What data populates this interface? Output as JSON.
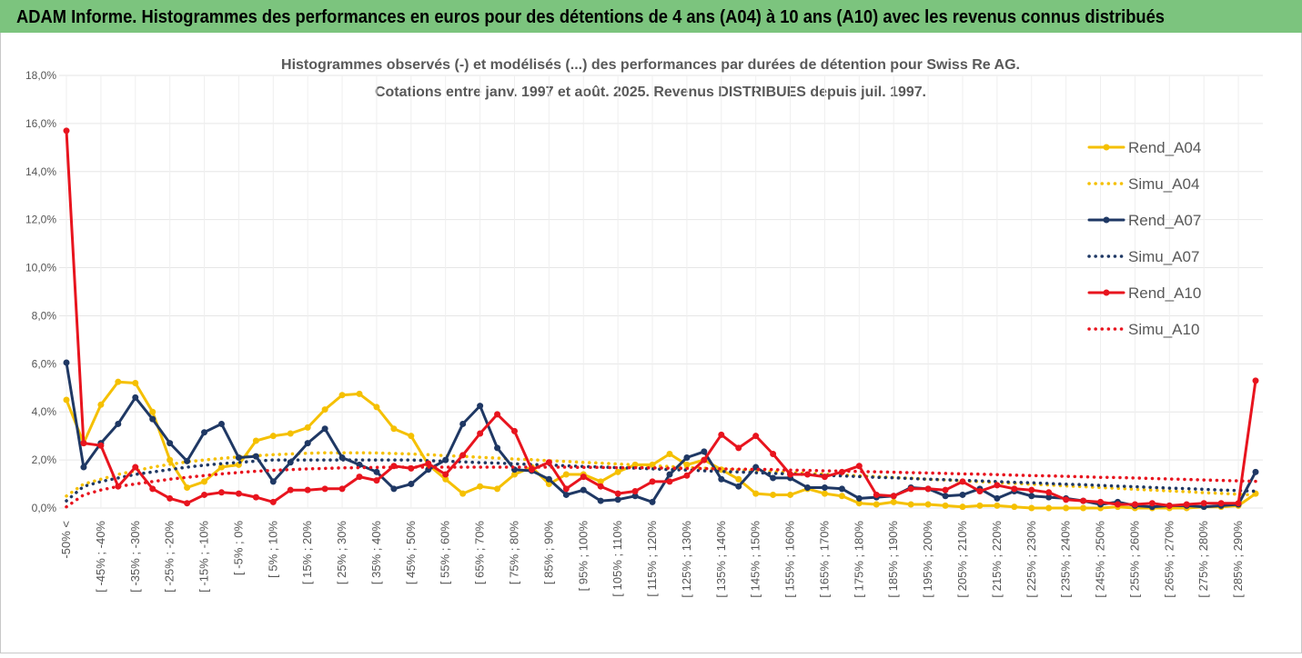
{
  "header": {
    "title": "ADAM Informe. Histogrammes des performances en euros pour des détentions de 4 ans (A04) à 10 ans (A10) avec les revenus connus distribués"
  },
  "chart_data": {
    "type": "line",
    "title": "Histogrammes observés (-) et modélisés (...) des performances par durées de détention pour Swiss Re AG.",
    "subtitle": "Cotations entre janv. 1997 et août. 2025. Revenus DISTRIBUES depuis juil. 1997.",
    "categories": [
      "-50% <",
      null,
      "[ -45% ; -40%",
      null,
      "[ -35% ; -30%",
      null,
      "[ -25% ; -20%",
      null,
      "[ -15% ; -10%",
      null,
      "[ -5% ; 0%",
      null,
      "[ 5% ; 10%",
      null,
      "[ 15% ; 20%",
      null,
      "[ 25% ; 30%",
      null,
      "[ 35% ; 40%",
      null,
      "[ 45% ; 50%",
      null,
      "[ 55% ; 60%",
      null,
      "[ 65% ; 70%",
      null,
      "[ 75% ; 80%",
      null,
      "[ 85% ; 90%",
      null,
      "[ 95% ; 100%",
      null,
      "[ 105% ; 110%",
      null,
      "[ 115% ; 120%",
      null,
      "[ 125% ; 130%",
      null,
      "[ 135% ; 140%",
      null,
      "[ 145% ; 150%",
      null,
      "[ 155% ; 160%",
      null,
      "[ 165% ; 170%",
      null,
      "[ 175% ; 180%",
      null,
      "[ 185% ; 190%",
      null,
      "[ 195% ; 200%",
      null,
      "[ 205% ; 210%",
      null,
      "[ 215% ; 220%",
      null,
      "[ 225% ; 230%",
      null,
      "[ 235% ; 240%",
      null,
      "[ 245% ; 250%",
      null,
      "[ 255% ; 260%",
      null,
      "[ 265% ; 270%",
      null,
      "[ 275% ; 280%",
      null,
      "[ 285% ; 290%",
      null
    ],
    "series": [
      {
        "name": "Rend_A04",
        "color": "#f5c000",
        "line_style": "solid",
        "markers": true,
        "values": [
          4.5,
          2.7,
          4.3,
          5.25,
          5.2,
          4.0,
          2.0,
          0.85,
          1.1,
          1.7,
          1.8,
          2.8,
          3.0,
          3.1,
          3.35,
          4.1,
          4.7,
          4.75,
          4.2,
          3.3,
          3.0,
          1.8,
          1.2,
          0.6,
          0.9,
          0.8,
          1.4,
          1.7,
          1.0,
          1.4,
          1.4,
          1.1,
          1.5,
          1.8,
          1.8,
          2.25,
          1.8,
          2.0,
          1.6,
          1.2,
          0.6,
          0.55,
          0.55,
          0.8,
          0.6,
          0.5,
          0.2,
          0.15,
          0.25,
          0.15,
          0.15,
          0.1,
          0.05,
          0.1,
          0.1,
          0.05,
          0,
          0,
          0,
          0,
          0,
          0.05,
          0,
          0,
          0,
          0,
          0.05,
          0.05,
          0.1,
          0.6
        ]
      },
      {
        "name": "Simu_A04",
        "color": "#f5c000",
        "line_style": "dotted",
        "markers": false,
        "values": [
          0.5,
          1.0,
          1.2,
          1.4,
          1.55,
          1.7,
          1.82,
          1.92,
          2.0,
          2.07,
          2.13,
          2.18,
          2.22,
          2.25,
          2.28,
          2.3,
          2.3,
          2.3,
          2.29,
          2.27,
          2.25,
          2.22,
          2.18,
          2.15,
          2.11,
          2.08,
          2.04,
          2.01,
          1.97,
          1.94,
          1.9,
          1.87,
          1.83,
          1.8,
          1.76,
          1.73,
          1.69,
          1.66,
          1.62,
          1.59,
          1.55,
          1.52,
          1.48,
          1.45,
          1.41,
          1.38,
          1.34,
          1.31,
          1.27,
          1.24,
          1.2,
          1.17,
          1.13,
          1.1,
          1.06,
          1.03,
          0.99,
          0.96,
          0.92,
          0.89,
          0.85,
          0.82,
          0.78,
          0.75,
          0.71,
          0.68,
          0.64,
          0.61,
          0.57,
          0.54
        ]
      },
      {
        "name": "Rend_A07",
        "color": "#1f3864",
        "line_style": "solid",
        "markers": true,
        "values": [
          6.05,
          1.7,
          2.7,
          3.5,
          4.6,
          3.7,
          2.7,
          1.95,
          3.15,
          3.5,
          2.1,
          2.15,
          1.1,
          1.9,
          2.7,
          3.3,
          2.1,
          1.8,
          1.5,
          0.8,
          1.0,
          1.6,
          2.0,
          3.5,
          4.25,
          2.5,
          1.6,
          1.55,
          1.2,
          0.55,
          0.75,
          0.3,
          0.35,
          0.5,
          0.25,
          1.4,
          2.1,
          2.35,
          1.2,
          0.9,
          1.7,
          1.25,
          1.25,
          0.85,
          0.85,
          0.8,
          0.4,
          0.45,
          0.5,
          0.85,
          0.8,
          0.5,
          0.55,
          0.8,
          0.4,
          0.7,
          0.5,
          0.45,
          0.4,
          0.3,
          0.15,
          0.25,
          0.1,
          0.05,
          0.1,
          0.1,
          0.05,
          0.1,
          0.15,
          1.5
        ]
      },
      {
        "name": "Simu_A07",
        "color": "#1f3864",
        "line_style": "dotted",
        "markers": false,
        "values": [
          0.3,
          0.9,
          1.1,
          1.25,
          1.4,
          1.5,
          1.6,
          1.7,
          1.78,
          1.85,
          1.9,
          1.95,
          2.0,
          2.0,
          2.0,
          2.0,
          2.0,
          2.0,
          2.0,
          2.0,
          2.0,
          1.97,
          1.95,
          1.92,
          1.89,
          1.87,
          1.84,
          1.81,
          1.79,
          1.76,
          1.73,
          1.71,
          1.68,
          1.66,
          1.63,
          1.6,
          1.58,
          1.55,
          1.52,
          1.5,
          1.47,
          1.44,
          1.42,
          1.39,
          1.36,
          1.34,
          1.31,
          1.28,
          1.26,
          1.23,
          1.2,
          1.18,
          1.15,
          1.13,
          1.1,
          1.07,
          1.05,
          1.02,
          0.99,
          0.97,
          0.94,
          0.91,
          0.89,
          0.86,
          0.83,
          0.81,
          0.78,
          0.75,
          0.73,
          0.7
        ]
      },
      {
        "name": "Rend_A10",
        "color": "#e8141e",
        "line_style": "solid",
        "markers": true,
        "values": [
          15.7,
          2.7,
          2.6,
          0.9,
          1.7,
          0.8,
          0.4,
          0.2,
          0.55,
          0.65,
          0.6,
          0.45,
          0.25,
          0.75,
          0.75,
          0.8,
          0.8,
          1.3,
          1.15,
          1.75,
          1.65,
          1.85,
          1.4,
          2.2,
          3.1,
          3.9,
          3.2,
          1.6,
          1.9,
          0.8,
          1.3,
          0.9,
          0.6,
          0.7,
          1.1,
          1.1,
          1.35,
          2.0,
          3.05,
          2.5,
          3.0,
          2.25,
          1.4,
          1.4,
          1.3,
          1.5,
          1.75,
          0.55,
          0.5,
          0.8,
          0.8,
          0.75,
          1.1,
          0.7,
          0.95,
          0.8,
          0.75,
          0.65,
          0.35,
          0.3,
          0.25,
          0.15,
          0.15,
          0.2,
          0.1,
          0.15,
          0.2,
          0.2,
          0.2,
          5.3
        ]
      },
      {
        "name": "Simu_A10",
        "color": "#e8141e",
        "line_style": "dotted",
        "markers": false,
        "values": [
          0.05,
          0.55,
          0.75,
          0.9,
          1.0,
          1.1,
          1.2,
          1.28,
          1.35,
          1.42,
          1.48,
          1.53,
          1.57,
          1.6,
          1.63,
          1.65,
          1.67,
          1.68,
          1.69,
          1.7,
          1.7,
          1.7,
          1.7,
          1.7,
          1.7,
          1.7,
          1.7,
          1.7,
          1.7,
          1.7,
          1.69,
          1.69,
          1.68,
          1.68,
          1.67,
          1.66,
          1.65,
          1.64,
          1.63,
          1.62,
          1.61,
          1.6,
          1.58,
          1.57,
          1.55,
          1.54,
          1.52,
          1.51,
          1.49,
          1.47,
          1.46,
          1.44,
          1.42,
          1.41,
          1.39,
          1.37,
          1.35,
          1.34,
          1.32,
          1.3,
          1.28,
          1.27,
          1.25,
          1.23,
          1.21,
          1.19,
          1.17,
          1.15,
          1.13,
          1.11
        ]
      }
    ],
    "ylim": [
      0,
      18
    ],
    "yticks": [
      {
        "value": 0,
        "label": "0,0%"
      },
      {
        "value": 2,
        "label": "2,0%"
      },
      {
        "value": 4,
        "label": "4,0%"
      },
      {
        "value": 6,
        "label": "6,0%"
      },
      {
        "value": 8,
        "label": "8,0%"
      },
      {
        "value": 10,
        "label": "10,0%"
      },
      {
        "value": 12,
        "label": "12,0%"
      },
      {
        "value": 14,
        "label": "14,0%"
      },
      {
        "value": 16,
        "label": "16,0%"
      },
      {
        "value": 18,
        "label": "18,0%"
      }
    ],
    "grid": true,
    "legend": "right"
  }
}
